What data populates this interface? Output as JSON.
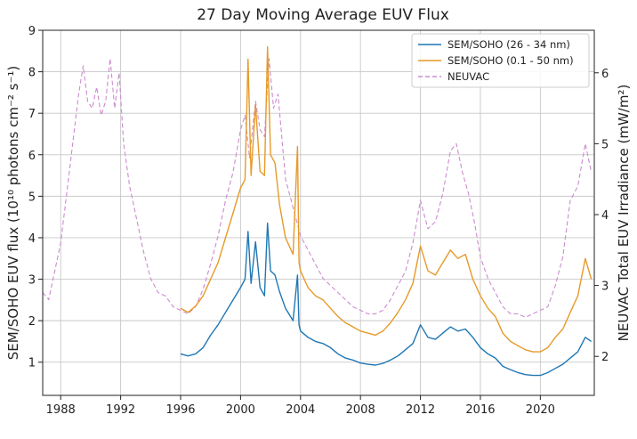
{
  "chart_data": {
    "type": "line",
    "title": "27 Day Moving Average EUV Flux",
    "xlabel": "",
    "ylabel_left": "SEM/SOHO EUV flux (10¹⁰ photons cm⁻² s⁻¹)",
    "ylabel_right": "NEUVAC Total EUV Irradiance (mW/m²)",
    "xlim": [
      1986.8,
      2023.6
    ],
    "ylim_left": [
      0.2,
      9
    ],
    "ylim_right": [
      1.45,
      6.6
    ],
    "x_ticks": [
      1988,
      1992,
      1996,
      2000,
      2004,
      2008,
      2012,
      2016,
      2020
    ],
    "y_ticks_left": [
      1,
      2,
      3,
      4,
      5,
      6,
      7,
      8,
      9
    ],
    "y_ticks_right": [
      2,
      3,
      4,
      5,
      6
    ],
    "grid": true,
    "legend_position": "top-right",
    "series": [
      {
        "name": "SEM/SOHO (26 - 34 nm)",
        "axis": "left",
        "color": "#1f77b4",
        "style": "solid",
        "x": [
          1996.0,
          1996.5,
          1997.0,
          1997.5,
          1998.0,
          1998.5,
          1999.0,
          1999.5,
          2000.0,
          2000.3,
          2000.5,
          2000.7,
          2001.0,
          2001.3,
          2001.6,
          2001.8,
          2002.0,
          2002.3,
          2002.6,
          2003.0,
          2003.5,
          2003.8,
          2003.9,
          2004.0,
          2004.5,
          2005.0,
          2005.5,
          2006.0,
          2006.5,
          2007.0,
          2007.5,
          2008.0,
          2008.5,
          2009.0,
          2009.5,
          2010.0,
          2010.5,
          2011.0,
          2011.5,
          2012.0,
          2012.5,
          2013.0,
          2013.5,
          2014.0,
          2014.5,
          2015.0,
          2015.5,
          2016.0,
          2016.5,
          2017.0,
          2017.5,
          2018.0,
          2018.5,
          2019.0,
          2019.5,
          2020.0,
          2020.5,
          2021.0,
          2021.5,
          2022.0,
          2022.5,
          2023.0,
          2023.4
        ],
        "y": [
          1.2,
          1.15,
          1.2,
          1.35,
          1.65,
          1.9,
          2.2,
          2.5,
          2.8,
          3.0,
          4.15,
          2.9,
          3.9,
          2.8,
          2.6,
          4.35,
          3.2,
          3.1,
          2.7,
          2.3,
          2.0,
          3.1,
          1.9,
          1.75,
          1.6,
          1.5,
          1.45,
          1.35,
          1.2,
          1.1,
          1.05,
          0.98,
          0.95,
          0.93,
          0.97,
          1.05,
          1.15,
          1.3,
          1.45,
          1.9,
          1.6,
          1.55,
          1.7,
          1.85,
          1.75,
          1.8,
          1.6,
          1.35,
          1.2,
          1.1,
          0.9,
          0.82,
          0.75,
          0.7,
          0.68,
          0.68,
          0.75,
          0.85,
          0.95,
          1.1,
          1.25,
          1.6,
          1.5
        ]
      },
      {
        "name": "SEM/SOHO (0.1 - 50 nm)",
        "axis": "left",
        "color": "#e69a2a",
        "style": "solid",
        "x": [
          1996.0,
          1996.5,
          1997.0,
          1997.5,
          1998.0,
          1998.5,
          1999.0,
          1999.5,
          2000.0,
          2000.3,
          2000.5,
          2000.7,
          2001.0,
          2001.3,
          2001.6,
          2001.8,
          2002.0,
          2002.3,
          2002.6,
          2003.0,
          2003.5,
          2003.8,
          2003.9,
          2004.0,
          2004.5,
          2005.0,
          2005.5,
          2006.0,
          2006.5,
          2007.0,
          2007.5,
          2008.0,
          2008.5,
          2009.0,
          2009.5,
          2010.0,
          2010.5,
          2011.0,
          2011.5,
          2012.0,
          2012.5,
          2013.0,
          2013.5,
          2014.0,
          2014.5,
          2015.0,
          2015.5,
          2016.0,
          2016.5,
          2017.0,
          2017.5,
          2018.0,
          2018.5,
          2019.0,
          2019.5,
          2020.0,
          2020.5,
          2021.0,
          2021.5,
          2022.0,
          2022.5,
          2023.0,
          2023.4
        ],
        "y": [
          2.3,
          2.2,
          2.35,
          2.6,
          3.0,
          3.4,
          4.0,
          4.6,
          5.2,
          5.4,
          8.3,
          5.5,
          7.2,
          5.6,
          5.5,
          8.6,
          6.0,
          5.8,
          4.8,
          4.0,
          3.6,
          6.2,
          3.4,
          3.2,
          2.8,
          2.6,
          2.5,
          2.3,
          2.1,
          1.95,
          1.85,
          1.75,
          1.7,
          1.65,
          1.75,
          1.95,
          2.2,
          2.5,
          2.9,
          3.8,
          3.2,
          3.1,
          3.4,
          3.7,
          3.5,
          3.6,
          3.0,
          2.6,
          2.3,
          2.1,
          1.7,
          1.5,
          1.4,
          1.3,
          1.25,
          1.25,
          1.35,
          1.6,
          1.8,
          2.2,
          2.6,
          3.5,
          3.0
        ]
      },
      {
        "name": "NEUVAC",
        "axis": "right",
        "color": "#cc8bd0",
        "style": "dashed",
        "x": [
          1986.8,
          1987.2,
          1987.6,
          1988.0,
          1988.4,
          1988.8,
          1989.2,
          1989.5,
          1989.8,
          1990.1,
          1990.4,
          1990.7,
          1991.0,
          1991.3,
          1991.6,
          1991.9,
          1992.2,
          1992.6,
          1993.0,
          1993.5,
          1994.0,
          1994.5,
          1995.0,
          1995.5,
          1996.0,
          1996.5,
          1997.0,
          1997.5,
          1998.0,
          1998.5,
          1999.0,
          1999.5,
          2000.0,
          2000.3,
          2000.6,
          2001.0,
          2001.3,
          2001.6,
          2001.9,
          2002.2,
          2002.5,
          2003.0,
          2003.5,
          2004.0,
          2004.5,
          2005.0,
          2005.5,
          2006.0,
          2006.5,
          2007.0,
          2007.5,
          2008.0,
          2008.5,
          2009.0,
          2009.5,
          2010.0,
          2010.5,
          2011.0,
          2011.5,
          2012.0,
          2012.5,
          2013.0,
          2013.5,
          2014.0,
          2014.4,
          2014.8,
          2015.2,
          2015.6,
          2016.0,
          2016.5,
          2017.0,
          2017.5,
          2018.0,
          2018.5,
          2019.0,
          2019.5,
          2020.0,
          2020.5,
          2021.0,
          2021.5,
          2022.0,
          2022.5,
          2023.0,
          2023.4
        ],
        "y": [
          2.9,
          2.8,
          3.2,
          3.6,
          4.3,
          5.0,
          5.7,
          6.1,
          5.6,
          5.5,
          5.8,
          5.4,
          5.6,
          6.2,
          5.5,
          6.0,
          5.0,
          4.4,
          4.0,
          3.5,
          3.1,
          2.9,
          2.85,
          2.7,
          2.65,
          2.6,
          2.7,
          2.95,
          3.3,
          3.7,
          4.2,
          4.6,
          5.2,
          5.4,
          4.8,
          5.6,
          5.2,
          5.1,
          6.2,
          5.5,
          5.7,
          4.5,
          4.1,
          3.7,
          3.5,
          3.3,
          3.1,
          3.0,
          2.9,
          2.8,
          2.7,
          2.65,
          2.6,
          2.6,
          2.65,
          2.8,
          3.0,
          3.2,
          3.6,
          4.2,
          3.8,
          3.9,
          4.3,
          4.9,
          5.0,
          4.6,
          4.3,
          3.9,
          3.4,
          3.1,
          2.9,
          2.7,
          2.6,
          2.6,
          2.55,
          2.6,
          2.65,
          2.7,
          3.0,
          3.4,
          4.2,
          4.4,
          5.0,
          4.6
        ]
      }
    ]
  }
}
